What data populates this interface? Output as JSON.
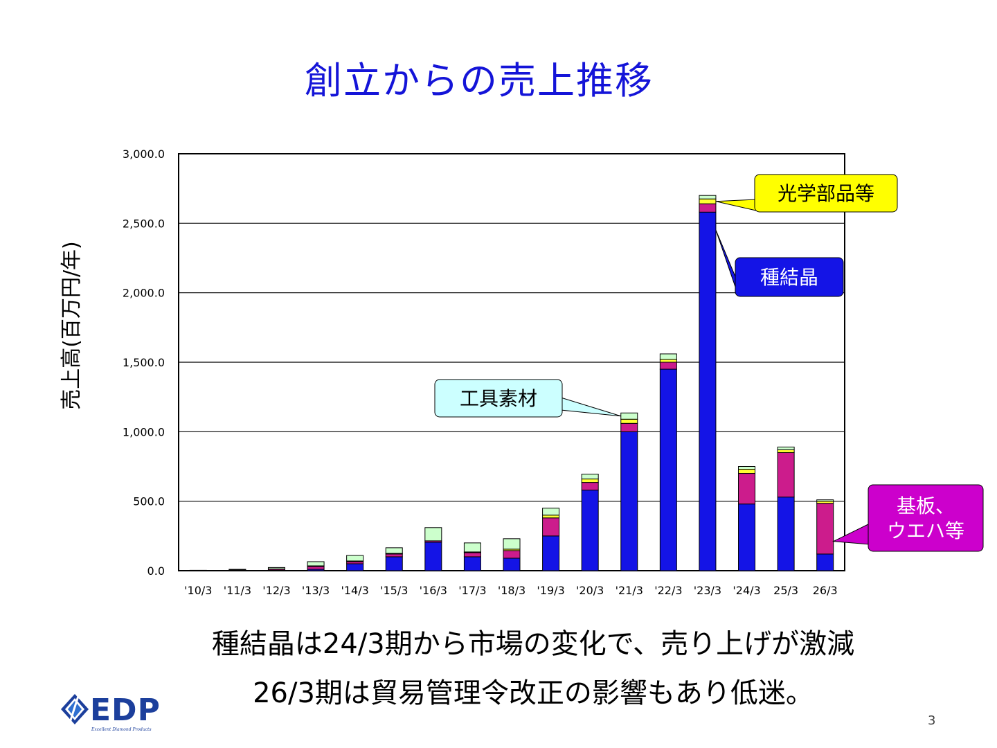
{
  "slide": {
    "title": "創立からの売上推移",
    "caption_line1": "種結晶は24/3期から市場の変化で、売り上げが激減",
    "caption_line2": "26/3期は貿易管理令改正の影響もあり低迷。",
    "page_number": "3",
    "logo": {
      "text": "EDP",
      "subtitle": "Excellent Diamond Products",
      "color": "#1c3f9c"
    }
  },
  "chart_data": {
    "type": "bar",
    "stacked": true,
    "ylabel": "売上高(百万円/年)",
    "ylim": [
      0,
      3000
    ],
    "yticks": [
      0,
      500,
      1000,
      1500,
      2000,
      2500,
      3000
    ],
    "ytick_labels": [
      "0.0",
      "500.0",
      "1,000.0",
      "1,500.0",
      "2,000.0",
      "2,500.0",
      "3,000.0"
    ],
    "grid": true,
    "categories": [
      "'10/3",
      "'11/3",
      "'12/3",
      "'13/3",
      "'14/3",
      "'15/3",
      "'16/3",
      "'17/3",
      "'18/3",
      "'19/3",
      "'20/3",
      "'21/3",
      "'22/3",
      "'23/3",
      "'24/3",
      "25/3",
      "26/3"
    ],
    "series": [
      {
        "key": "seed",
        "name": "種結晶",
        "color": "#1414e6",
        "values": [
          0,
          3,
          5,
          10,
          50,
          100,
          205,
          100,
          90,
          250,
          580,
          1000,
          1450,
          2580,
          480,
          530,
          120
        ]
      },
      {
        "key": "substrate",
        "name": "基板、ウエハ等",
        "color": "#cc1c8c",
        "values": [
          0,
          2,
          8,
          20,
          15,
          20,
          10,
          30,
          55,
          130,
          55,
          60,
          50,
          60,
          220,
          320,
          365
        ]
      },
      {
        "key": "optical",
        "name": "光学部品等",
        "color": "#ffff33",
        "values": [
          0,
          0,
          0,
          5,
          5,
          5,
          0,
          5,
          10,
          20,
          25,
          30,
          20,
          35,
          30,
          20,
          15
        ]
      },
      {
        "key": "tool",
        "name": "工具素材",
        "color": "#ccffcc",
        "values": [
          3,
          5,
          10,
          30,
          40,
          40,
          95,
          65,
          75,
          50,
          35,
          45,
          40,
          25,
          20,
          20,
          10
        ]
      }
    ],
    "callouts": [
      {
        "series": "optical",
        "label": "光学部品等",
        "fill": "#ffff00",
        "text_color": "#000000"
      },
      {
        "series": "seed",
        "label": "種結晶",
        "fill": "#1414e6",
        "text_color": "#ffffff"
      },
      {
        "series": "tool",
        "label": "工具素材",
        "fill": "#ccffff",
        "text_color": "#000000"
      },
      {
        "series": "substrate",
        "label_lines": [
          "基板、",
          "ウエハ等"
        ],
        "fill": "#cc00cc",
        "text_color": "#ffffff"
      }
    ]
  }
}
